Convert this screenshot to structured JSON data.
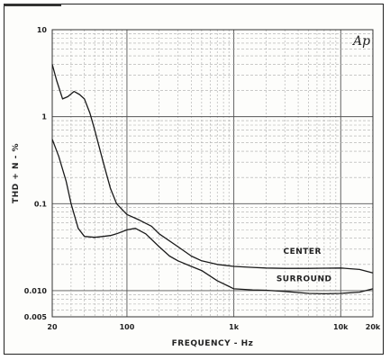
{
  "chart_data": {
    "type": "line",
    "title": "",
    "xlabel": "FREQUENCY - Hz",
    "ylabel": "THD + N - %",
    "xscale": "log",
    "yscale": "log",
    "xlim": [
      20,
      20000
    ],
    "ylim": [
      0.005,
      10
    ],
    "grid": true,
    "legend": "inline labels beside curves",
    "xticks": [
      {
        "value": 20,
        "label": "20"
      },
      {
        "value": 100,
        "label": "100"
      },
      {
        "value": 1000,
        "label": "1k"
      },
      {
        "value": 10000,
        "label": "10k"
      },
      {
        "value": 20000,
        "label": "20k"
      }
    ],
    "yticks": [
      {
        "value": 10,
        "label": "10"
      },
      {
        "value": 1,
        "label": "1"
      },
      {
        "value": 0.1,
        "label": "0.1"
      },
      {
        "value": 0.01,
        "label": "0.010"
      },
      {
        "value": 0.005,
        "label": "0.005"
      }
    ],
    "series": [
      {
        "name": "CENTER",
        "color": "#1a1a1a",
        "x": [
          20,
          22,
          25,
          28,
          32,
          36,
          40,
          45,
          50,
          60,
          70,
          80,
          100,
          130,
          170,
          200,
          300,
          400,
          500,
          700,
          1000,
          1500,
          2000,
          3000,
          5000,
          7000,
          10000,
          15000,
          20000
        ],
        "y": [
          4.0,
          2.6,
          1.6,
          1.7,
          1.95,
          1.8,
          1.6,
          1.1,
          0.7,
          0.3,
          0.15,
          0.1,
          0.075,
          0.065,
          0.055,
          0.045,
          0.032,
          0.025,
          0.022,
          0.02,
          0.019,
          0.0185,
          0.0182,
          0.018,
          0.018,
          0.0181,
          0.0182,
          0.0175,
          0.016
        ]
      },
      {
        "name": "SURROUND",
        "color": "#1a1a1a",
        "x": [
          20,
          23,
          27,
          30,
          35,
          40,
          50,
          60,
          70,
          80,
          100,
          120,
          150,
          200,
          250,
          300,
          400,
          500,
          700,
          1000,
          1500,
          2000,
          3000,
          5000,
          7000,
          10000,
          15000,
          20000
        ],
        "y": [
          0.55,
          0.35,
          0.18,
          0.1,
          0.052,
          0.042,
          0.041,
          0.042,
          0.043,
          0.045,
          0.05,
          0.052,
          0.045,
          0.032,
          0.025,
          0.022,
          0.019,
          0.017,
          0.013,
          0.0105,
          0.0102,
          0.0101,
          0.0098,
          0.0093,
          0.0092,
          0.0093,
          0.0096,
          0.0105
        ]
      }
    ]
  },
  "logo_text": "Ap"
}
